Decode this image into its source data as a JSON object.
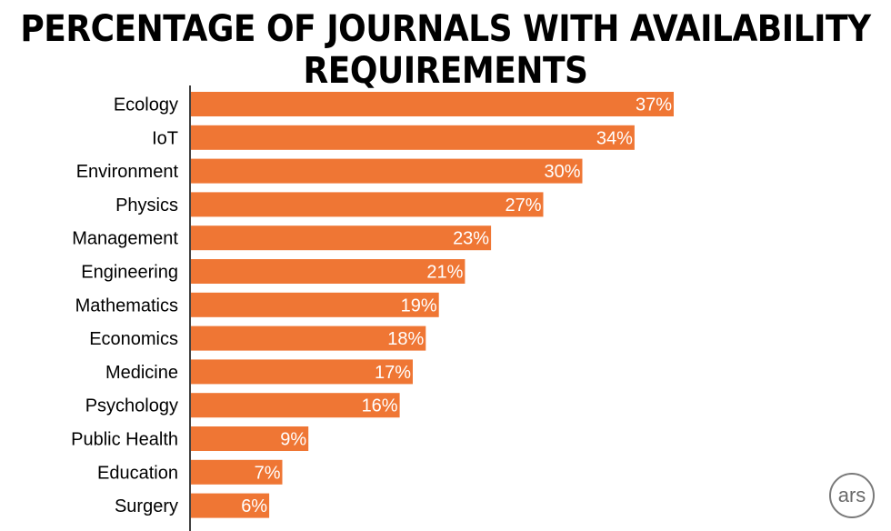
{
  "chart_data": {
    "type": "bar",
    "orientation": "horizontal",
    "title": "PERCENTAGE OF JOURNALS WITH AVAILABILITY REQUIREMENTS",
    "categories": [
      "Ecology",
      "IoT",
      "Environment",
      "Physics",
      "Management",
      "Engineering",
      "Mathematics",
      "Economics",
      "Medicine",
      "Psychology",
      "Public Health",
      "Education",
      "Surgery"
    ],
    "values": [
      37,
      34,
      30,
      27,
      23,
      21,
      19,
      18,
      17,
      16,
      9,
      7,
      6
    ],
    "value_labels": [
      "37%",
      "34%",
      "30%",
      "27%",
      "23%",
      "21%",
      "19%",
      "18%",
      "17%",
      "16%",
      "9%",
      "7%",
      "6%"
    ],
    "unit": "%",
    "xlim": [
      0,
      37
    ],
    "grid": false,
    "legend": "none",
    "bar_color": "#ef7634"
  },
  "logo": {
    "text": "ars"
  }
}
